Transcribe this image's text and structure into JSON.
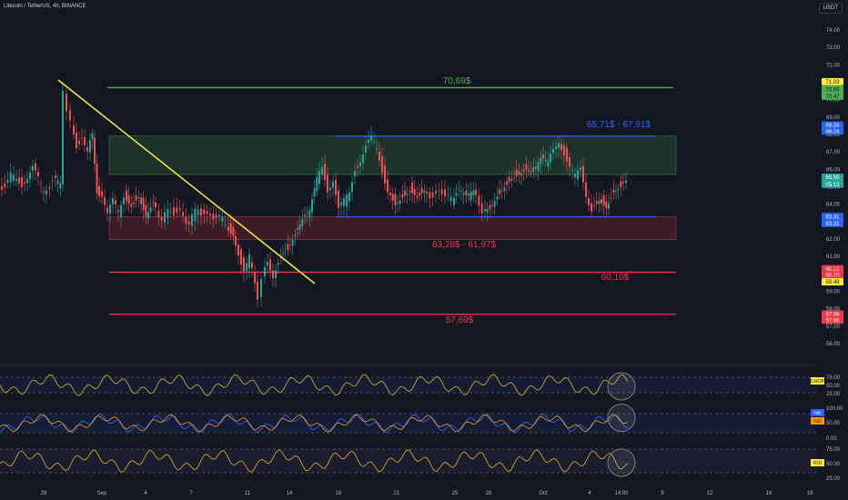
{
  "header": {
    "symbol": "Litecoin / TetherUS, 4h, BINANCE",
    "currency": "USDT"
  },
  "chart_data": {
    "type": "candlestick",
    "price_axis": {
      "ticks": [
        "74.00",
        "73.00",
        "72.00",
        "71.00",
        "70.00",
        "69.00",
        "68.00",
        "67.00",
        "66.00",
        "65.00",
        "64.00",
        "63.00",
        "62.00",
        "61.00",
        "60.00",
        "59.00",
        "58.00",
        "57.00",
        "56.00"
      ],
      "range": [
        55.5,
        74.5
      ]
    },
    "x_axis_labels": [
      "28",
      "Sep",
      "4",
      "7",
      "11",
      "14",
      "18",
      "21",
      "25",
      "28",
      "Oct",
      "4",
      "14:00",
      "9",
      "12",
      "16",
      "19"
    ],
    "levels": [
      {
        "id": "l7069",
        "label": "70,69$",
        "price": 70.69,
        "color": "#4caf50"
      },
      {
        "id": "l6791",
        "label": "65,71$ - 67,91$",
        "price": 67.91,
        "color": "#2962ff"
      },
      {
        "id": "l6328",
        "price": 63.28,
        "color": "#2962ff"
      },
      {
        "id": "l6328lbl",
        "label": "63,28$ - 61,97$",
        "price": 61.97,
        "color": "#f23645"
      },
      {
        "id": "l6010",
        "label": "60,10$",
        "price": 60.1,
        "color": "#f23645"
      },
      {
        "id": "l5769",
        "label": "57,69$",
        "price": 57.69,
        "color": "#f23645"
      }
    ],
    "zones": [
      {
        "id": "green-zone",
        "top": 67.91,
        "bottom": 65.71,
        "color": "#4caf50"
      },
      {
        "id": "red-zone",
        "top": 63.28,
        "bottom": 61.97,
        "color": "#f23645"
      }
    ],
    "trendline": {
      "color": "#ffeb3b"
    },
    "price_tags": [
      {
        "text": "71.03",
        "price": 71.03,
        "bg": "#ffeb3b",
        "fg": "#131722"
      },
      {
        "text": "70.69",
        "price": 70.6,
        "bg": "#4caf50",
        "fg": "#131722"
      },
      {
        "text": "70.47",
        "price": 70.2,
        "bg": "#4caf50",
        "fg": "#131722"
      },
      {
        "text": "68.24",
        "price": 68.55,
        "bg": "#2962ff",
        "fg": "#ffffff"
      },
      {
        "text": "68.24",
        "price": 68.2,
        "bg": "#2962ff",
        "fg": "#ffffff"
      },
      {
        "text": "65.59",
        "price": 65.55,
        "bg": "#26a69a",
        "fg": "#ffffff"
      },
      {
        "text": "05:13",
        "price": 65.15,
        "bg": "#26a69a",
        "fg": "#ffffff"
      },
      {
        "text": "63.31",
        "price": 63.3,
        "bg": "#2962ff",
        "fg": "#ffffff"
      },
      {
        "text": "63.31",
        "price": 62.9,
        "bg": "#2962ff",
        "fg": "#ffffff"
      },
      {
        "text": "60.12",
        "price": 60.3,
        "bg": "#f23645",
        "fg": "#ffffff"
      },
      {
        "text": "60.10",
        "price": 59.95,
        "bg": "#f23645",
        "fg": "#ffffff"
      },
      {
        "text": "59.49",
        "price": 59.55,
        "bg": "#ffeb3b",
        "fg": "#131722"
      },
      {
        "text": "57.69",
        "price": 57.7,
        "bg": "#f23645",
        "fg": "#ffffff"
      },
      {
        "text": "57.66",
        "price": 57.35,
        "bg": "#f23645",
        "fg": "#ffffff"
      }
    ],
    "indicators": [
      {
        "id": "chop",
        "label": "CHOP",
        "ticks": [
          "75.00",
          "50.00",
          "25.00"
        ],
        "label_bg": "#ffeb3b",
        "label_fg": "#131722"
      },
      {
        "id": "stoch",
        "label": "%K",
        "label2": "%D",
        "ticks": [
          "100.00",
          "50.00",
          "0.00"
        ],
        "label_bg": "#2962ff",
        "label_fg": "#ffffff"
      },
      {
        "id": "rsi",
        "label": "RSI",
        "ticks": [
          "75.00",
          "50.00",
          "25.00"
        ],
        "label_bg": "#ffeb3b",
        "label_fg": "#131722"
      }
    ]
  }
}
